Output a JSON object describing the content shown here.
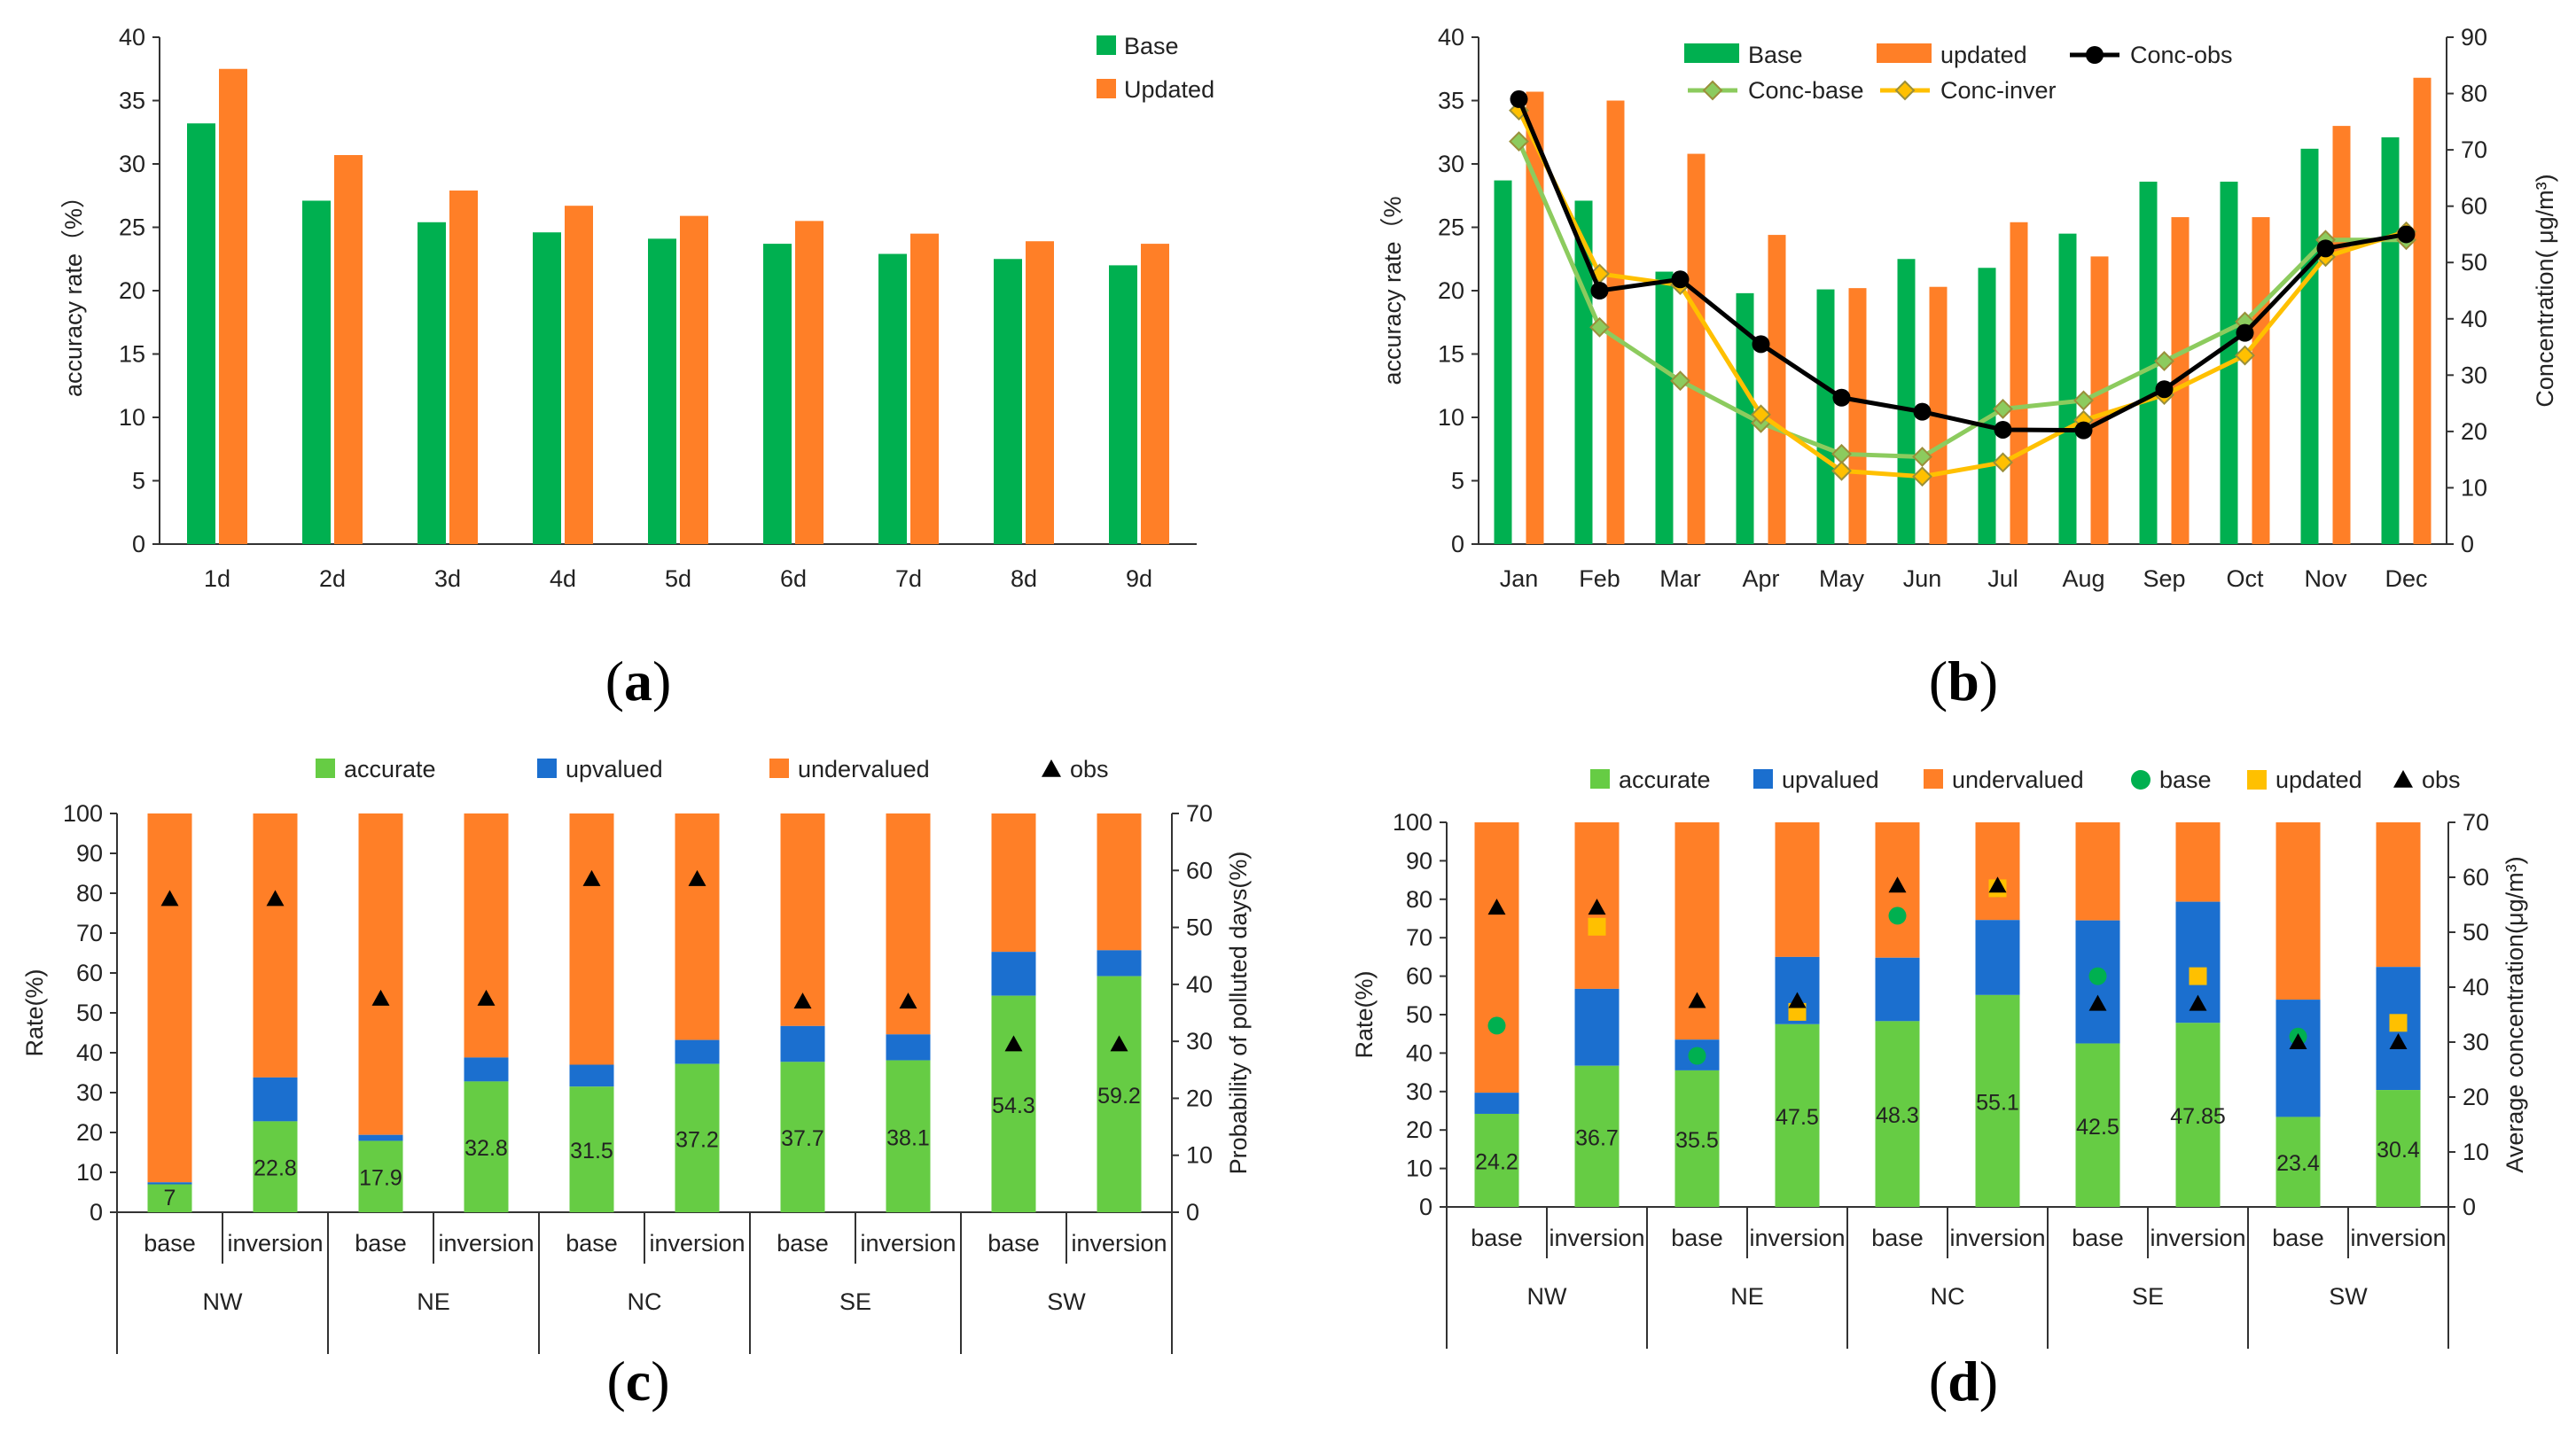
{
  "colors": {
    "green": "#00B050",
    "orange": "#FF7F27",
    "lightgreen": "#66CC44",
    "blue": "#1B6FCF",
    "black": "#000000",
    "convline": "#8CCB5E",
    "yellowline": "#FFC000",
    "dotgreen": "#00B050",
    "squareyellow": "#FFC000"
  },
  "panel_labels": {
    "a": "a",
    "b": "b",
    "c": "c",
    "d": "d"
  },
  "chart_data": [
    {
      "id": "a",
      "type": "bar",
      "ylabel": "accuracy rate（%）",
      "ylim": [
        0,
        40
      ],
      "yticks": [
        0,
        5,
        10,
        15,
        20,
        25,
        30,
        35,
        40
      ],
      "categories": [
        "1d",
        "2d",
        "3d",
        "4d",
        "5d",
        "6d",
        "7d",
        "8d",
        "9d"
      ],
      "series": [
        {
          "name": "Base",
          "color": "#00B050",
          "values": [
            33.2,
            27.1,
            25.4,
            24.6,
            24.1,
            23.7,
            22.9,
            22.5,
            22.0
          ]
        },
        {
          "name": "Updated",
          "color": "#FF7F27",
          "values": [
            37.5,
            30.7,
            27.9,
            26.7,
            25.9,
            25.5,
            24.5,
            23.9,
            23.7
          ]
        }
      ]
    },
    {
      "id": "b",
      "type": "bar+line",
      "ylabel": "accuracy rate（%",
      "y2label": "Concentration( μg/m³)",
      "ylim": [
        0,
        40
      ],
      "yticks": [
        0,
        5,
        10,
        15,
        20,
        25,
        30,
        35,
        40
      ],
      "y2lim": [
        0,
        90
      ],
      "y2ticks": [
        0,
        10,
        20,
        30,
        40,
        50,
        60,
        70,
        80,
        90
      ],
      "categories": [
        "Jan",
        "Feb",
        "Mar",
        "Apr",
        "May",
        "Jun",
        "Jul",
        "Aug",
        "Sep",
        "Oct",
        "Nov",
        "Dec"
      ],
      "series": [
        {
          "name": "Base",
          "kind": "bar",
          "color": "#00B050",
          "values": [
            28.7,
            27.1,
            21.5,
            19.8,
            20.1,
            22.5,
            21.8,
            24.5,
            28.6,
            28.6,
            31.2,
            32.1
          ]
        },
        {
          "name": "updated",
          "kind": "bar",
          "color": "#FF7F27",
          "values": [
            35.7,
            35.0,
            30.8,
            24.4,
            20.2,
            20.3,
            25.4,
            22.7,
            25.8,
            25.8,
            33.0,
            36.8
          ]
        },
        {
          "name": "Conc-obs",
          "kind": "line",
          "color": "#000000",
          "marker": "circle",
          "values": [
            79,
            45,
            47,
            35.5,
            26,
            23.5,
            20.3,
            20.2,
            27.5,
            37.5,
            52.5,
            55
          ]
        },
        {
          "name": "Conc-base",
          "kind": "line",
          "color": "#8CCB5E",
          "marker": "diamond",
          "values": [
            71.5,
            38.5,
            29,
            21.5,
            16,
            15.5,
            24,
            25.5,
            32.5,
            39.5,
            54,
            54
          ]
        },
        {
          "name": "Conc-inver",
          "kind": "line",
          "color": "#FFC000",
          "marker": "diamond",
          "values": [
            77,
            48,
            46,
            23,
            13,
            12,
            14.5,
            22,
            26.5,
            33.5,
            51,
            55.5
          ]
        }
      ]
    },
    {
      "id": "c",
      "type": "stacked-bar",
      "ylabel": "Rate(%)",
      "y2label": "Probability of polluted days(%)",
      "ylim": [
        0,
        100
      ],
      "yticks": [
        0,
        10,
        20,
        30,
        40,
        50,
        60,
        70,
        80,
        90,
        100
      ],
      "y2lim": [
        0,
        70
      ],
      "y2ticks": [
        0,
        10,
        20,
        30,
        40,
        50,
        60,
        70
      ],
      "groups": [
        "NW",
        "NE",
        "NC",
        "SE",
        "SW"
      ],
      "subcategories": [
        "base",
        "inversion",
        "base",
        "inversion",
        "base",
        "inversion",
        "base",
        "inversion",
        "base",
        "inversion"
      ],
      "accurate": [
        7,
        22.8,
        17.9,
        32.8,
        31.5,
        37.2,
        37.7,
        38.1,
        54.3,
        59.2
      ],
      "accurate_labels": [
        "7",
        "22.8",
        "17.9",
        "32.8",
        "31.5",
        "37.2",
        "37.7",
        "38.1",
        "54.3",
        "59.2"
      ],
      "upvalued": [
        0.5,
        11,
        1.5,
        6,
        5.5,
        6,
        9,
        6.5,
        11,
        6.5
      ],
      "obs": [
        55,
        55,
        37.5,
        37.5,
        58.5,
        58.5,
        37,
        37,
        29.5,
        29.5
      ],
      "legend": [
        "accurate",
        "upvalued",
        "undervalued",
        "obs"
      ]
    },
    {
      "id": "d",
      "type": "stacked-bar",
      "ylabel": "Rate(%)",
      "y2label": "Average concentration(μg/m³)",
      "ylim": [
        0,
        100
      ],
      "yticks": [
        0,
        10,
        20,
        30,
        40,
        50,
        60,
        70,
        80,
        90,
        100
      ],
      "y2lim": [
        0,
        70
      ],
      "y2ticks": [
        0,
        10,
        20,
        30,
        40,
        50,
        60,
        70
      ],
      "groups": [
        "NW",
        "NE",
        "NC",
        "SE",
        "SW"
      ],
      "subcategories": [
        "base",
        "inversion",
        "base",
        "inversion",
        "base",
        "inversion",
        "base",
        "inversion",
        "base",
        "inversion"
      ],
      "accurate": [
        24.2,
        36.7,
        35.5,
        47.5,
        48.3,
        55.1,
        42.5,
        47.85,
        23.4,
        30.4
      ],
      "accurate_labels": [
        "24.2",
        "36.7",
        "35.5",
        "47.5",
        "48.3",
        "55.1",
        "42.5",
        "47.85",
        "23.4",
        "30.4"
      ],
      "upvalued": [
        5.5,
        20,
        8,
        17.5,
        16.5,
        19.5,
        32,
        31.5,
        30.5,
        32
      ],
      "base_points": [
        33,
        53,
        27.5,
        58,
        42,
        31
      ],
      "base_point_index": [
        0,
        4,
        2,
        5,
        6,
        8
      ],
      "updated_points": [
        51,
        35.5,
        58,
        42,
        33.5
      ],
      "updated_point_index": [
        1,
        3,
        5,
        7,
        9
      ],
      "obs": [
        54.5,
        54.5,
        37.5,
        37.5,
        58.5,
        58.5,
        37,
        37,
        30,
        30
      ],
      "legend": [
        "accurate",
        "upvalued",
        "undervalued",
        "base",
        "updated",
        "obs"
      ]
    }
  ]
}
